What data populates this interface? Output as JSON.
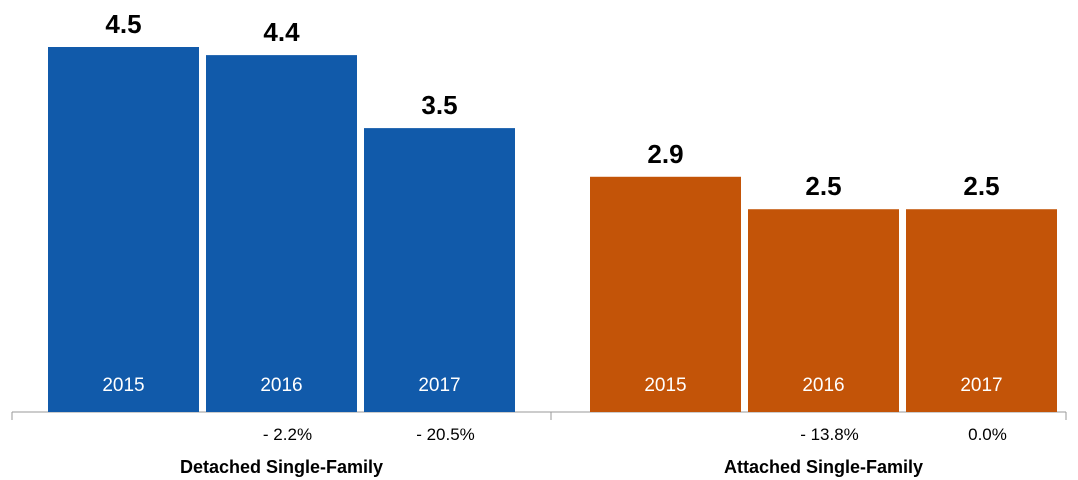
{
  "chart_data": {
    "type": "bar",
    "title": "",
    "xlabel": "",
    "ylabel": "",
    "ylim": [
      0,
      4.6
    ],
    "grid": false,
    "legend": "none",
    "groups": [
      {
        "name": "Detached Single-Family",
        "color": "#115aaa",
        "bars": [
          {
            "year": "2015",
            "value": 4.5,
            "value_label": "4.5",
            "change": ""
          },
          {
            "year": "2016",
            "value": 4.4,
            "value_label": "4.4",
            "change": "- 2.2%"
          },
          {
            "year": "2017",
            "value": 3.5,
            "value_label": "3.5",
            "change": "- 20.5%"
          }
        ]
      },
      {
        "name": "Attached Single-Family",
        "color": "#c35408",
        "bars": [
          {
            "year": "2015",
            "value": 2.9,
            "value_label": "2.9",
            "change": ""
          },
          {
            "year": "2016",
            "value": 2.5,
            "value_label": "2.5",
            "change": "- 13.8%"
          },
          {
            "year": "2017",
            "value": 2.5,
            "value_label": "2.5",
            "change": "0.0%"
          }
        ]
      }
    ]
  }
}
